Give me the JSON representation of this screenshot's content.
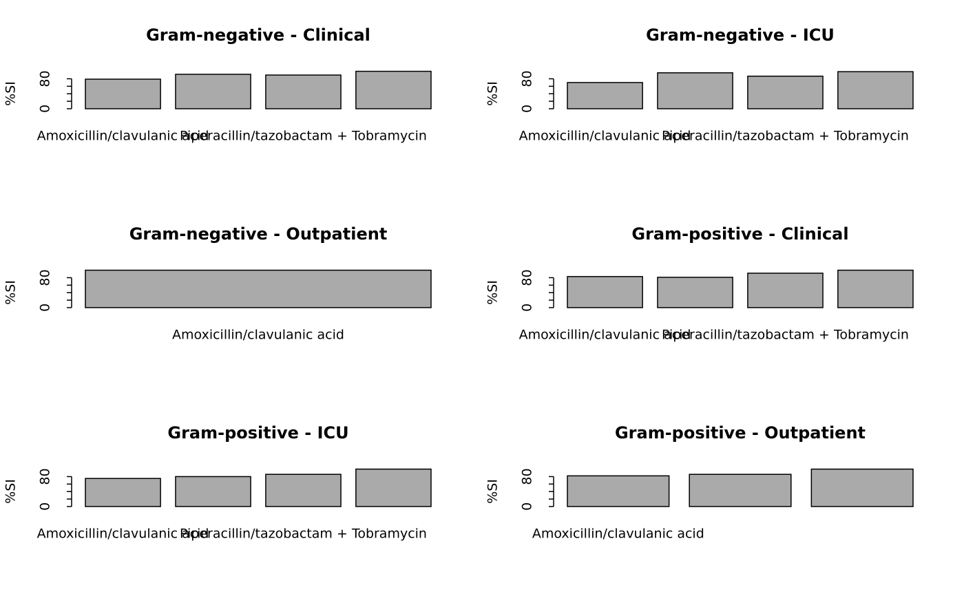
{
  "chart_data": [
    {
      "type": "bar",
      "title": "Gram-negative - Clinical",
      "ylabel": "%SI",
      "categories": [
        "Amoxicillin/clavulanic acid",
        null,
        "Piperacillin/tazobactam + Tobramycin",
        null
      ],
      "values": [
        79,
        92,
        90,
        100
      ],
      "color": "#aaaaaa",
      "ylim": [
        0,
        104
      ],
      "yticks": [
        0,
        80
      ],
      "yminorticks": [
        20,
        40,
        60
      ]
    },
    {
      "type": "bar",
      "title": "Gram-negative - ICU",
      "ylabel": "%SI",
      "categories": [
        "Amoxicillin/clavulanic acid",
        null,
        "Piperacillin/tazobactam + Tobramycin",
        null
      ],
      "values": [
        70,
        96,
        87,
        99
      ],
      "color": "#aaaaaa",
      "ylim": [
        0,
        104
      ],
      "yticks": [
        0,
        80
      ],
      "yminorticks": [
        20,
        40,
        60
      ]
    },
    {
      "type": "bar",
      "title": "Gram-negative - Outpatient",
      "ylabel": "%SI",
      "categories": [
        "Amoxicillin/clavulanic acid"
      ],
      "values": [
        100
      ],
      "color": "#aaaaaa",
      "ylim": [
        0,
        104
      ],
      "yticks": [
        0,
        80
      ],
      "yminorticks": [
        20,
        40,
        60
      ]
    },
    {
      "type": "bar",
      "title": "Gram-positive - Clinical",
      "ylabel": "%SI",
      "categories": [
        "Amoxicillin/clavulanic acid",
        null,
        "Piperacillin/tazobactam + Tobramycin",
        null
      ],
      "values": [
        83,
        81,
        92,
        100
      ],
      "color": "#aaaaaa",
      "ylim": [
        0,
        104
      ],
      "yticks": [
        0,
        80
      ],
      "yminorticks": [
        20,
        40,
        60
      ]
    },
    {
      "type": "bar",
      "title": "Gram-positive - ICU",
      "ylabel": "%SI",
      "categories": [
        "Amoxicillin/clavulanic acid",
        null,
        "Piperacillin/tazobactam + Tobramycin",
        null
      ],
      "values": [
        75,
        80,
        86,
        100
      ],
      "color": "#aaaaaa",
      "ylim": [
        0,
        104
      ],
      "yticks": [
        0,
        80
      ],
      "yminorticks": [
        20,
        40,
        60
      ]
    },
    {
      "type": "bar",
      "title": "Gram-positive - Outpatient",
      "ylabel": "%SI",
      "categories": [
        "Amoxicillin/clavulanic acid",
        null,
        null
      ],
      "values": [
        82,
        86,
        100
      ],
      "color": "#aaaaaa",
      "ylim": [
        0,
        104
      ],
      "yticks": [
        0,
        80
      ],
      "yminorticks": [
        20,
        40,
        60
      ]
    }
  ]
}
